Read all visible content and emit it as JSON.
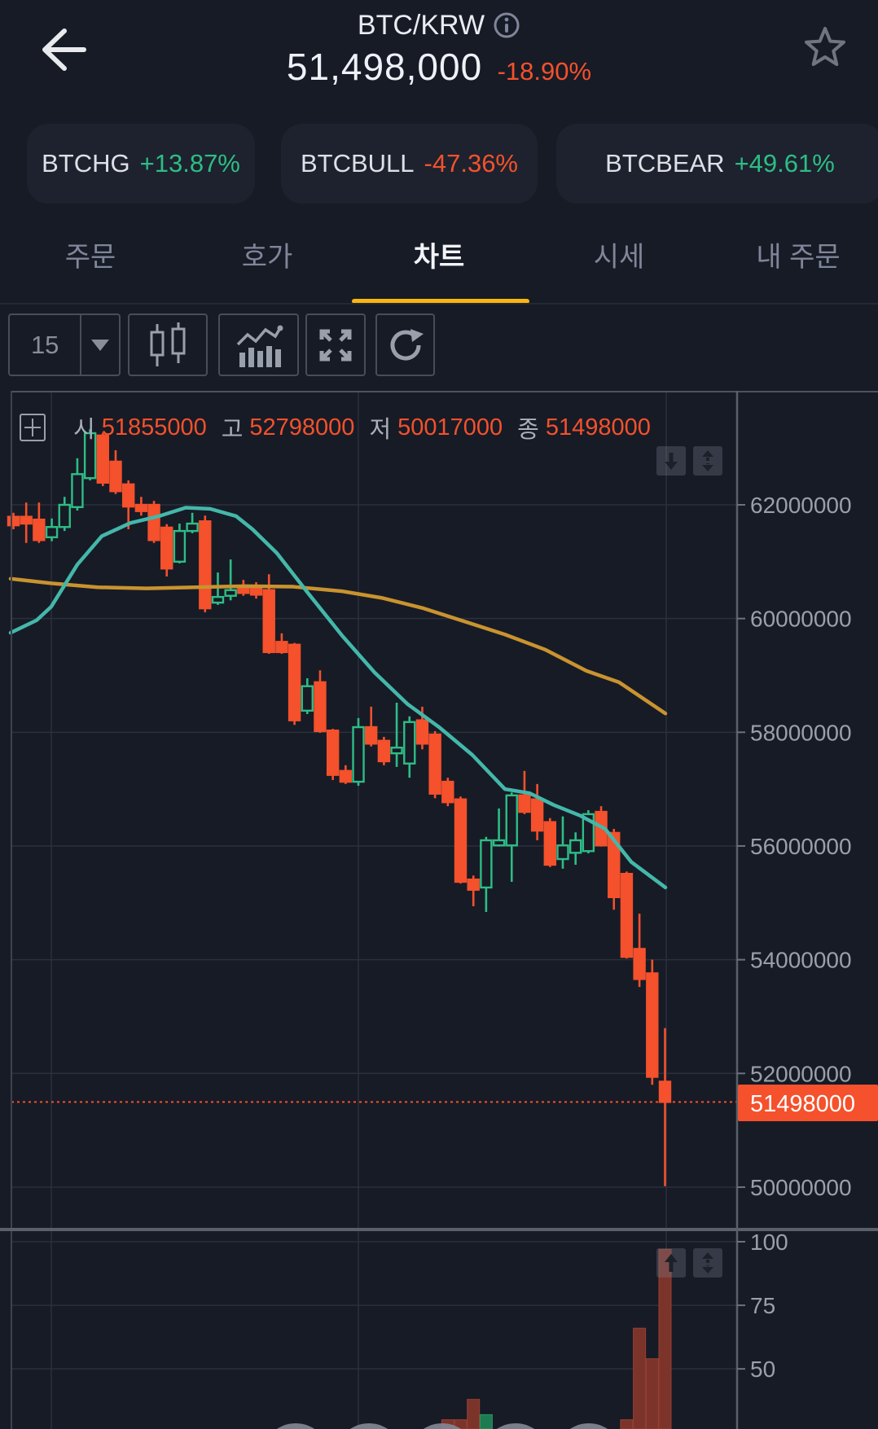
{
  "header": {
    "symbol": "BTC/KRW",
    "price": "51,498,000",
    "change": "-18.90%"
  },
  "watchlist": [
    {
      "name": "BTCHG",
      "change": "+13.87%",
      "direction": "up"
    },
    {
      "name": "BTCBULL",
      "change": "-47.36%",
      "direction": "down"
    },
    {
      "name": "BTCBEAR",
      "change": "+49.61%",
      "direction": "up"
    }
  ],
  "tabs": [
    {
      "label": "주문"
    },
    {
      "label": "호가"
    },
    {
      "label": "차트",
      "active": true
    },
    {
      "label": "시세"
    },
    {
      "label": "내 주문"
    }
  ],
  "toolbar": {
    "interval": "15"
  },
  "legend": {
    "open_label": "시",
    "open": "51855000",
    "high_label": "고",
    "high": "52798000",
    "low_label": "저",
    "low": "50017000",
    "close_label": "종",
    "close": "51498000"
  },
  "colors": {
    "up": "#2ebd85",
    "down": "#f4512c",
    "ma_fast": "#44b7aa",
    "ma_slow": "#c9932f",
    "grid": "#2a303c",
    "axis": "#596069",
    "label": "#9aa0aa",
    "accent": "#fbb50d"
  },
  "chart_data": {
    "type": "candlestick+volume",
    "title": "BTC/KRW 15-minute chart",
    "price_unit": "KRW (values in millions)",
    "ylim_price_m": [
      49.3,
      64.0
    ],
    "y_ticks": [
      {
        "value_m": 62,
        "label": "62000000"
      },
      {
        "value_m": 60,
        "label": "60000000"
      },
      {
        "value_m": 58,
        "label": "58000000"
      },
      {
        "value_m": 56,
        "label": "56000000"
      },
      {
        "value_m": 54,
        "label": "54000000"
      },
      {
        "value_m": 52,
        "label": "52000000"
      },
      {
        "value_m": 50,
        "label": "50000000"
      }
    ],
    "last_price_m": 51.498,
    "last_price_label": "51498000",
    "ohlc_last": {
      "open": 51855000,
      "high": 52798000,
      "low": 50017000,
      "close": 51498000
    },
    "candles_ohlc_m": [
      [
        61.79,
        61.86,
        61.57,
        61.64
      ],
      [
        61.79,
        62.04,
        61.33,
        61.67
      ],
      [
        61.74,
        62.04,
        61.33,
        61.38
      ],
      [
        61.43,
        61.76,
        61.36,
        61.61
      ],
      [
        61.61,
        62.14,
        61.54,
        62.0
      ],
      [
        61.96,
        62.82,
        61.9,
        62.54
      ],
      [
        62.47,
        63.33,
        62.43,
        63.26
      ],
      [
        63.22,
        63.27,
        62.33,
        62.39
      ],
      [
        62.76,
        62.96,
        62.19,
        62.24
      ],
      [
        62.36,
        62.43,
        61.57,
        61.97
      ],
      [
        62.0,
        62.14,
        61.81,
        61.89
      ],
      [
        62.0,
        62.07,
        61.33,
        61.38
      ],
      [
        61.6,
        61.66,
        60.74,
        60.88
      ],
      [
        61.0,
        61.67,
        60.97,
        61.54
      ],
      [
        61.54,
        61.86,
        61.5,
        61.67
      ],
      [
        61.71,
        61.81,
        60.11,
        60.18
      ],
      [
        60.28,
        60.81,
        60.24,
        60.38
      ],
      [
        60.4,
        61.04,
        60.32,
        60.5
      ],
      [
        60.54,
        60.68,
        60.4,
        60.45
      ],
      [
        60.54,
        60.64,
        60.35,
        60.42
      ],
      [
        60.5,
        60.78,
        59.38,
        59.41
      ],
      [
        59.59,
        59.74,
        59.38,
        59.41
      ],
      [
        59.54,
        59.57,
        58.13,
        58.21
      ],
      [
        58.38,
        58.95,
        58.32,
        58.81
      ],
      [
        58.88,
        59.09,
        57.99,
        58.02
      ],
      [
        58.03,
        58.06,
        57.16,
        57.25
      ],
      [
        57.32,
        57.42,
        57.09,
        57.13
      ],
      [
        57.13,
        58.25,
        57.06,
        58.09
      ],
      [
        58.09,
        58.45,
        57.75,
        57.8
      ],
      [
        57.85,
        57.92,
        57.42,
        57.49
      ],
      [
        57.63,
        58.52,
        57.39,
        57.73
      ],
      [
        57.45,
        58.28,
        57.2,
        58.18
      ],
      [
        58.21,
        58.45,
        57.7,
        57.8
      ],
      [
        57.96,
        58.02,
        56.84,
        56.92
      ],
      [
        57.13,
        57.2,
        56.7,
        56.77
      ],
      [
        56.82,
        56.87,
        55.34,
        55.37
      ],
      [
        55.41,
        55.48,
        54.94,
        55.23
      ],
      [
        55.27,
        56.16,
        54.84,
        56.1
      ],
      [
        56.01,
        56.66,
        55.99,
        56.1
      ],
      [
        56.01,
        56.94,
        55.37,
        56.89
      ],
      [
        56.89,
        57.32,
        56.56,
        56.6
      ],
      [
        56.82,
        57.09,
        56.1,
        56.27
      ],
      [
        56.42,
        56.49,
        55.63,
        55.67
      ],
      [
        55.77,
        56.52,
        55.6,
        56.01
      ],
      [
        55.88,
        56.24,
        55.67,
        56.1
      ],
      [
        55.91,
        56.63,
        55.87,
        56.56
      ],
      [
        56.6,
        56.7,
        55.99,
        56.01
      ],
      [
        56.23,
        56.3,
        54.88,
        55.1
      ],
      [
        55.51,
        55.55,
        54.02,
        54.05
      ],
      [
        54.19,
        54.81,
        53.52,
        53.66
      ],
      [
        53.76,
        54.0,
        51.8,
        51.94
      ],
      [
        51.855,
        52.798,
        50.017,
        51.498
      ]
    ],
    "ma_fast_teal": [
      [
        13,
        59.75
      ],
      [
        45,
        59.97
      ],
      [
        63,
        60.21
      ],
      [
        95,
        60.95
      ],
      [
        125,
        61.45
      ],
      [
        160,
        61.68
      ],
      [
        195,
        61.8
      ],
      [
        228,
        61.95
      ],
      [
        258,
        61.93
      ],
      [
        290,
        61.8
      ],
      [
        310,
        61.57
      ],
      [
        340,
        61.15
      ],
      [
        377,
        60.47
      ],
      [
        420,
        59.7
      ],
      [
        460,
        59.05
      ],
      [
        500,
        58.5
      ],
      [
        540,
        58.08
      ],
      [
        580,
        57.6
      ],
      [
        620,
        57.0
      ],
      [
        650,
        56.93
      ],
      [
        680,
        56.72
      ],
      [
        713,
        56.53
      ],
      [
        743,
        56.3
      ],
      [
        775,
        55.72
      ],
      [
        817,
        55.27
      ]
    ],
    "ma_slow_orange": [
      [
        13,
        60.7
      ],
      [
        63,
        60.62
      ],
      [
        120,
        60.55
      ],
      [
        180,
        60.53
      ],
      [
        240,
        60.55
      ],
      [
        300,
        60.57
      ],
      [
        360,
        60.56
      ],
      [
        420,
        60.48
      ],
      [
        470,
        60.36
      ],
      [
        520,
        60.18
      ],
      [
        570,
        59.95
      ],
      [
        620,
        59.72
      ],
      [
        670,
        59.45
      ],
      [
        720,
        59.08
      ],
      [
        760,
        58.88
      ],
      [
        817,
        58.33
      ]
    ],
    "volume": {
      "ticks": [
        100,
        75,
        50
      ],
      "ylim": [
        25,
        100
      ],
      "bars": [
        {
          "index": 34,
          "value": 30,
          "up": false
        },
        {
          "index": 35,
          "value": 30,
          "up": false
        },
        {
          "index": 36,
          "value": 38,
          "up": false
        },
        {
          "index": 37,
          "value": 32,
          "up": true
        },
        {
          "index": 48,
          "value": 30,
          "up": false
        },
        {
          "index": 49,
          "value": 66,
          "up": false
        },
        {
          "index": 50,
          "value": 54,
          "up": false
        },
        {
          "index": 51,
          "value": 97,
          "up": false
        }
      ]
    },
    "legend_position": "top-left",
    "grid": true
  }
}
